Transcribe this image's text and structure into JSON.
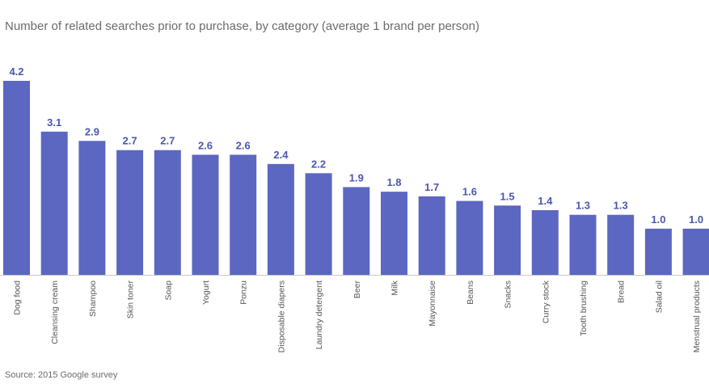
{
  "title": "Number of related searches prior to purchase, by category (average 1 brand per person)",
  "source": "Source: 2015 Google survey",
  "colors": {
    "bar": "#5b67c0",
    "value_label": "#4a56b0",
    "category_label": "#555555",
    "axis": "#c8c8c8"
  },
  "chart_data": {
    "type": "bar",
    "title": "Number of related searches prior to purchase, by category (average 1 brand per person)",
    "xlabel": "",
    "ylabel": "",
    "ylim": [
      0,
      4.2
    ],
    "grid": false,
    "categories": [
      "Dog food",
      "Cleansing cream",
      "Shampoo",
      "Skin toner",
      "Soap",
      "Yogurt",
      "Ponzu",
      "Disposable diapers",
      "Laundry detergent",
      "Beer",
      "Milk",
      "Mayonnaise",
      "Beans",
      "Snacks",
      "Curry stock",
      "Tooth brushing",
      "Bread",
      "Salad oil",
      "Menstrual products"
    ],
    "values": [
      4.2,
      3.1,
      2.9,
      2.7,
      2.7,
      2.6,
      2.6,
      2.4,
      2.2,
      1.9,
      1.8,
      1.7,
      1.6,
      1.5,
      1.4,
      1.3,
      1.3,
      1.0,
      1.0
    ],
    "value_labels": [
      "4.2",
      "3.1",
      "2.9",
      "2.7",
      "2.7",
      "2.6",
      "2.6",
      "2.4",
      "2.2",
      "1.9",
      "1.8",
      "1.7",
      "1.6",
      "1.5",
      "1.4",
      "1.3",
      "1.3",
      "1.0",
      "1.0"
    ]
  }
}
